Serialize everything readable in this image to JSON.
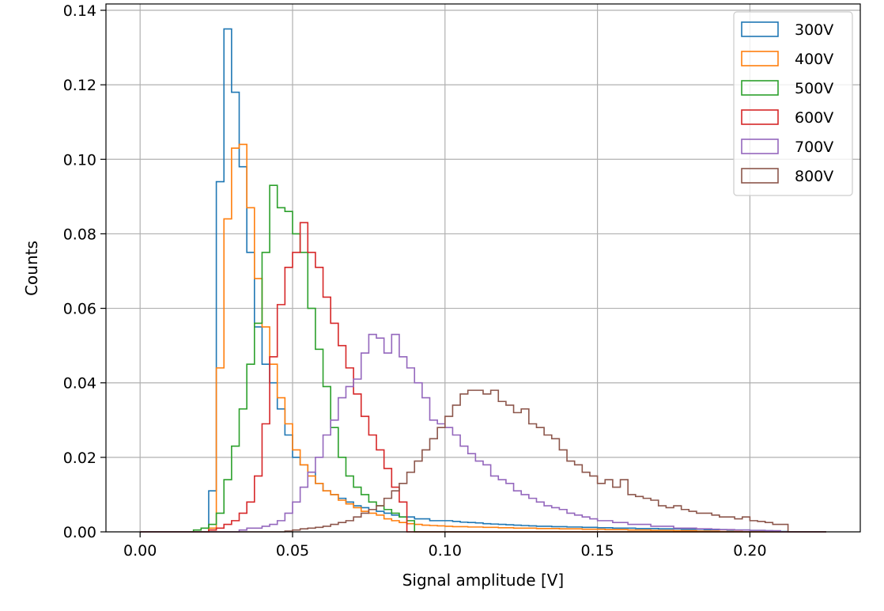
{
  "chart_data": {
    "type": "histogram",
    "histtype": "step",
    "xlabel": "Signal amplitude [V]",
    "ylabel": "Counts",
    "xlim": [
      -0.0112,
      0.2362
    ],
    "ylim": [
      0.0,
      0.1417
    ],
    "grid": true,
    "legend_position": "top-right",
    "xticks": [
      0.0,
      0.05,
      0.1,
      0.15,
      0.2
    ],
    "xtick_labels": [
      "0.00",
      "0.05",
      "0.10",
      "0.15",
      "0.20"
    ],
    "yticks": [
      0.0,
      0.02,
      0.04,
      0.06,
      0.08,
      0.1,
      0.12,
      0.14
    ],
    "ytick_labels": [
      "0.00",
      "0.02",
      "0.04",
      "0.06",
      "0.08",
      "0.10",
      "0.12",
      "0.14"
    ],
    "bin_start": 0.0,
    "bin_width": 0.0025,
    "series": [
      {
        "name": "300V",
        "color": "#1f77b4",
        "values": [
          0,
          0,
          0,
          0,
          0,
          0,
          0,
          0,
          0,
          0.011,
          0.094,
          0.135,
          0.118,
          0.098,
          0.075,
          0.055,
          0.045,
          0.04,
          0.033,
          0.026,
          0.02,
          0.018,
          0.016,
          0.013,
          0.011,
          0.01,
          0.009,
          0.008,
          0.007,
          0.0065,
          0.006,
          0.0055,
          0.005,
          0.0045,
          0.004,
          0.004,
          0.0035,
          0.0035,
          0.003,
          0.003,
          0.003,
          0.0028,
          0.0026,
          0.0025,
          0.0024,
          0.0022,
          0.0021,
          0.002,
          0.0019,
          0.0018,
          0.0017,
          0.0016,
          0.0015,
          0.0015,
          0.0014,
          0.0014,
          0.0013,
          0.0013,
          0.0012,
          0.0012,
          0.0011,
          0.0011,
          0.001,
          0.001,
          0.001,
          0.0009,
          0.0009,
          0.0009,
          0.0008,
          0.0008,
          0.0008,
          0.0007,
          0.0007,
          0.0007,
          0.0006,
          0.0006,
          0.0006,
          0.0005,
          0.0005,
          0.0005,
          0.0004,
          0.0004,
          0.0003,
          0.0002,
          0.0001,
          0,
          0,
          0,
          0,
          0
        ]
      },
      {
        "name": "400V",
        "color": "#ff7f0e",
        "values": [
          0,
          0,
          0,
          0,
          0,
          0,
          0,
          0,
          0,
          0.001,
          0.044,
          0.084,
          0.103,
          0.104,
          0.087,
          0.068,
          0.055,
          0.045,
          0.036,
          0.029,
          0.022,
          0.018,
          0.015,
          0.013,
          0.011,
          0.01,
          0.0085,
          0.0075,
          0.0065,
          0.0055,
          0.005,
          0.0045,
          0.0035,
          0.003,
          0.0025,
          0.0022,
          0.002,
          0.0018,
          0.0017,
          0.0016,
          0.0015,
          0.0014,
          0.0014,
          0.0013,
          0.0013,
          0.0012,
          0.0012,
          0.0011,
          0.0011,
          0.001,
          0.001,
          0.001,
          0.0009,
          0.0009,
          0.0009,
          0.0008,
          0.0008,
          0.0008,
          0.0007,
          0.0007,
          0.0007,
          0.0006,
          0.0006,
          0.0006,
          0.0005,
          0.0005,
          0.0005,
          0.0004,
          0.0004,
          0.0004,
          0.0003,
          0.0003,
          0.0003,
          0.0002,
          0.0002,
          0.0002,
          0.0001,
          0.0001,
          0.0001,
          0,
          0,
          0,
          0,
          0,
          0,
          0,
          0,
          0,
          0,
          0
        ]
      },
      {
        "name": "500V",
        "color": "#2ca02c",
        "values": [
          0,
          0,
          0,
          0,
          0,
          0,
          0,
          0.0005,
          0.001,
          0.002,
          0.005,
          0.014,
          0.023,
          0.033,
          0.045,
          0.056,
          0.075,
          0.093,
          0.087,
          0.086,
          0.08,
          0.075,
          0.06,
          0.049,
          0.039,
          0.028,
          0.02,
          0.015,
          0.012,
          0.01,
          0.008,
          0.007,
          0.006,
          0.005,
          0.004,
          0.003,
          0,
          0,
          0,
          0,
          0,
          0,
          0,
          0,
          0,
          0,
          0,
          0,
          0,
          0,
          0,
          0,
          0,
          0,
          0,
          0,
          0,
          0,
          0,
          0,
          0,
          0,
          0,
          0,
          0,
          0,
          0,
          0,
          0,
          0,
          0,
          0,
          0,
          0,
          0,
          0,
          0,
          0,
          0,
          0,
          0,
          0,
          0,
          0,
          0,
          0,
          0,
          0,
          0,
          0
        ]
      },
      {
        "name": "600V",
        "color": "#d62728",
        "values": [
          0,
          0,
          0,
          0,
          0,
          0,
          0,
          0,
          0,
          0.0005,
          0.001,
          0.002,
          0.003,
          0.005,
          0.008,
          0.015,
          0.029,
          0.047,
          0.061,
          0.071,
          0.075,
          0.083,
          0.075,
          0.071,
          0.063,
          0.056,
          0.05,
          0.044,
          0.037,
          0.031,
          0.026,
          0.022,
          0.017,
          0.012,
          0.008,
          0,
          0,
          0,
          0,
          0,
          0,
          0,
          0,
          0,
          0,
          0,
          0,
          0,
          0,
          0,
          0,
          0,
          0,
          0,
          0,
          0,
          0,
          0,
          0,
          0,
          0,
          0,
          0,
          0,
          0,
          0,
          0,
          0,
          0,
          0,
          0,
          0,
          0,
          0,
          0,
          0,
          0,
          0,
          0,
          0,
          0,
          0,
          0,
          0,
          0,
          0,
          0,
          0,
          0,
          0
        ]
      },
      {
        "name": "700V",
        "color": "#9467bd",
        "values": [
          0,
          0,
          0,
          0,
          0,
          0,
          0,
          0,
          0,
          0,
          0,
          0,
          0,
          0.0005,
          0.001,
          0.001,
          0.0015,
          0.002,
          0.003,
          0.005,
          0.008,
          0.012,
          0.016,
          0.02,
          0.026,
          0.03,
          0.036,
          0.039,
          0.041,
          0.048,
          0.053,
          0.052,
          0.048,
          0.053,
          0.047,
          0.044,
          0.04,
          0.036,
          0.03,
          0.029,
          0.028,
          0.026,
          0.023,
          0.021,
          0.019,
          0.018,
          0.015,
          0.014,
          0.013,
          0.011,
          0.01,
          0.009,
          0.008,
          0.007,
          0.0065,
          0.006,
          0.005,
          0.0045,
          0.004,
          0.0035,
          0.003,
          0.003,
          0.0025,
          0.0025,
          0.002,
          0.002,
          0.002,
          0.0015,
          0.0015,
          0.0015,
          0.001,
          0.001,
          0.001,
          0.0008,
          0.0008,
          0.0007,
          0.0006,
          0.0006,
          0.0005,
          0.0005,
          0.0004,
          0.0004,
          0.0003,
          0.0003,
          0,
          0,
          0,
          0,
          0,
          0
        ]
      },
      {
        "name": "800V",
        "color": "#8c564b",
        "values": [
          0,
          0,
          0,
          0,
          0,
          0,
          0,
          0,
          0,
          0,
          0,
          0,
          0,
          0,
          0,
          0,
          0,
          0,
          0,
          0.0002,
          0.0005,
          0.0008,
          0.001,
          0.0012,
          0.0015,
          0.002,
          0.0025,
          0.003,
          0.004,
          0.005,
          0.006,
          0.007,
          0.009,
          0.011,
          0.013,
          0.016,
          0.019,
          0.022,
          0.025,
          0.028,
          0.031,
          0.034,
          0.037,
          0.038,
          0.038,
          0.037,
          0.038,
          0.035,
          0.034,
          0.032,
          0.033,
          0.029,
          0.028,
          0.026,
          0.025,
          0.022,
          0.019,
          0.018,
          0.016,
          0.015,
          0.013,
          0.014,
          0.012,
          0.014,
          0.01,
          0.0095,
          0.009,
          0.0085,
          0.007,
          0.0065,
          0.007,
          0.006,
          0.0055,
          0.005,
          0.005,
          0.0045,
          0.004,
          0.004,
          0.0035,
          0.004,
          0.003,
          0.0028,
          0.0025,
          0.002,
          0.002,
          0,
          0,
          0,
          0,
          0
        ]
      }
    ]
  }
}
